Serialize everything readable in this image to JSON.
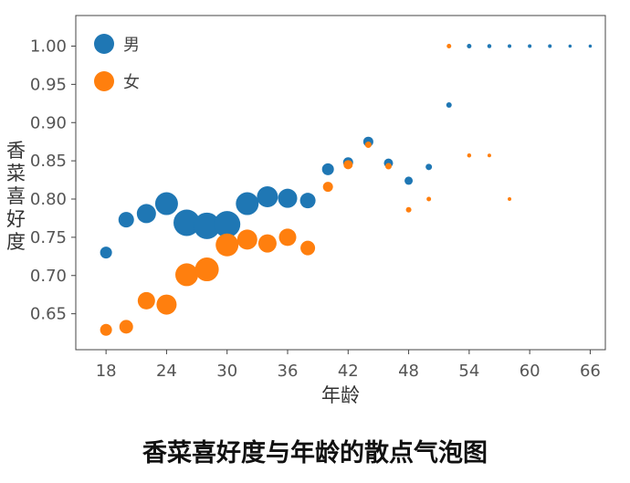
{
  "chart_data": {
    "type": "scatter",
    "title": "香菜喜好度与年龄的散点气泡图",
    "xlabel": "年龄",
    "ylabel": "香菜喜好度",
    "xticks": [
      "18",
      "24",
      "30",
      "36",
      "42",
      "48",
      "54",
      "60",
      "66"
    ],
    "yticks": [
      "0.65",
      "0.70",
      "0.75",
      "0.80",
      "0.85",
      "0.90",
      "0.95",
      "1.00"
    ],
    "xlim": [
      15,
      67.5
    ],
    "ylim": [
      0.603,
      1.04
    ],
    "grid": false,
    "legend_position": "top-left",
    "bubble_size": "relative number of respondents (larger bubble = more people)",
    "series": [
      {
        "name": "男",
        "color": "#1f77b4",
        "points": [
          {
            "x": 18,
            "y": 0.73,
            "size": 12
          },
          {
            "x": 20,
            "y": 0.773,
            "size": 16
          },
          {
            "x": 22,
            "y": 0.781,
            "size": 20
          },
          {
            "x": 24,
            "y": 0.794,
            "size": 24
          },
          {
            "x": 26,
            "y": 0.769,
            "size": 28
          },
          {
            "x": 28,
            "y": 0.765,
            "size": 28
          },
          {
            "x": 30,
            "y": 0.767,
            "size": 28
          },
          {
            "x": 32,
            "y": 0.794,
            "size": 24
          },
          {
            "x": 34,
            "y": 0.803,
            "size": 22
          },
          {
            "x": 36,
            "y": 0.801,
            "size": 20
          },
          {
            "x": 38,
            "y": 0.798,
            "size": 16
          },
          {
            "x": 40,
            "y": 0.839,
            "size": 12
          },
          {
            "x": 42,
            "y": 0.848,
            "size": 10
          },
          {
            "x": 44,
            "y": 0.875,
            "size": 10
          },
          {
            "x": 46,
            "y": 0.847,
            "size": 9
          },
          {
            "x": 48,
            "y": 0.824,
            "size": 8
          },
          {
            "x": 50,
            "y": 0.842,
            "size": 6
          },
          {
            "x": 52,
            "y": 0.923,
            "size": 5
          },
          {
            "x": 54,
            "y": 1.0,
            "size": 4
          },
          {
            "x": 56,
            "y": 1.0,
            "size": 3.5
          },
          {
            "x": 58,
            "y": 1.0,
            "size": 3
          },
          {
            "x": 60,
            "y": 1.0,
            "size": 3
          },
          {
            "x": 62,
            "y": 1.0,
            "size": 3
          },
          {
            "x": 64,
            "y": 1.0,
            "size": 2.5
          },
          {
            "x": 66,
            "y": 1.0,
            "size": 2.5
          }
        ]
      },
      {
        "name": "女",
        "color": "#ff7f0e",
        "points": [
          {
            "x": 18,
            "y": 0.629,
            "size": 12
          },
          {
            "x": 20,
            "y": 0.633,
            "size": 14
          },
          {
            "x": 22,
            "y": 0.667,
            "size": 18
          },
          {
            "x": 24,
            "y": 0.662,
            "size": 21
          },
          {
            "x": 26,
            "y": 0.701,
            "size": 24
          },
          {
            "x": 28,
            "y": 0.708,
            "size": 25
          },
          {
            "x": 30,
            "y": 0.74,
            "size": 24
          },
          {
            "x": 32,
            "y": 0.747,
            "size": 21
          },
          {
            "x": 34,
            "y": 0.742,
            "size": 19
          },
          {
            "x": 36,
            "y": 0.75,
            "size": 18
          },
          {
            "x": 38,
            "y": 0.736,
            "size": 15
          },
          {
            "x": 40,
            "y": 0.816,
            "size": 10
          },
          {
            "x": 42,
            "y": 0.845,
            "size": 9
          },
          {
            "x": 44,
            "y": 0.871,
            "size": 6
          },
          {
            "x": 46,
            "y": 0.843,
            "size": 6
          },
          {
            "x": 48,
            "y": 0.786,
            "size": 5
          },
          {
            "x": 50,
            "y": 0.8,
            "size": 4
          },
          {
            "x": 52,
            "y": 1.0,
            "size": 4
          },
          {
            "x": 54,
            "y": 0.857,
            "size": 3.5
          },
          {
            "x": 56,
            "y": 0.857,
            "size": 3
          },
          {
            "x": 58,
            "y": 0.8,
            "size": 3
          }
        ]
      }
    ]
  }
}
